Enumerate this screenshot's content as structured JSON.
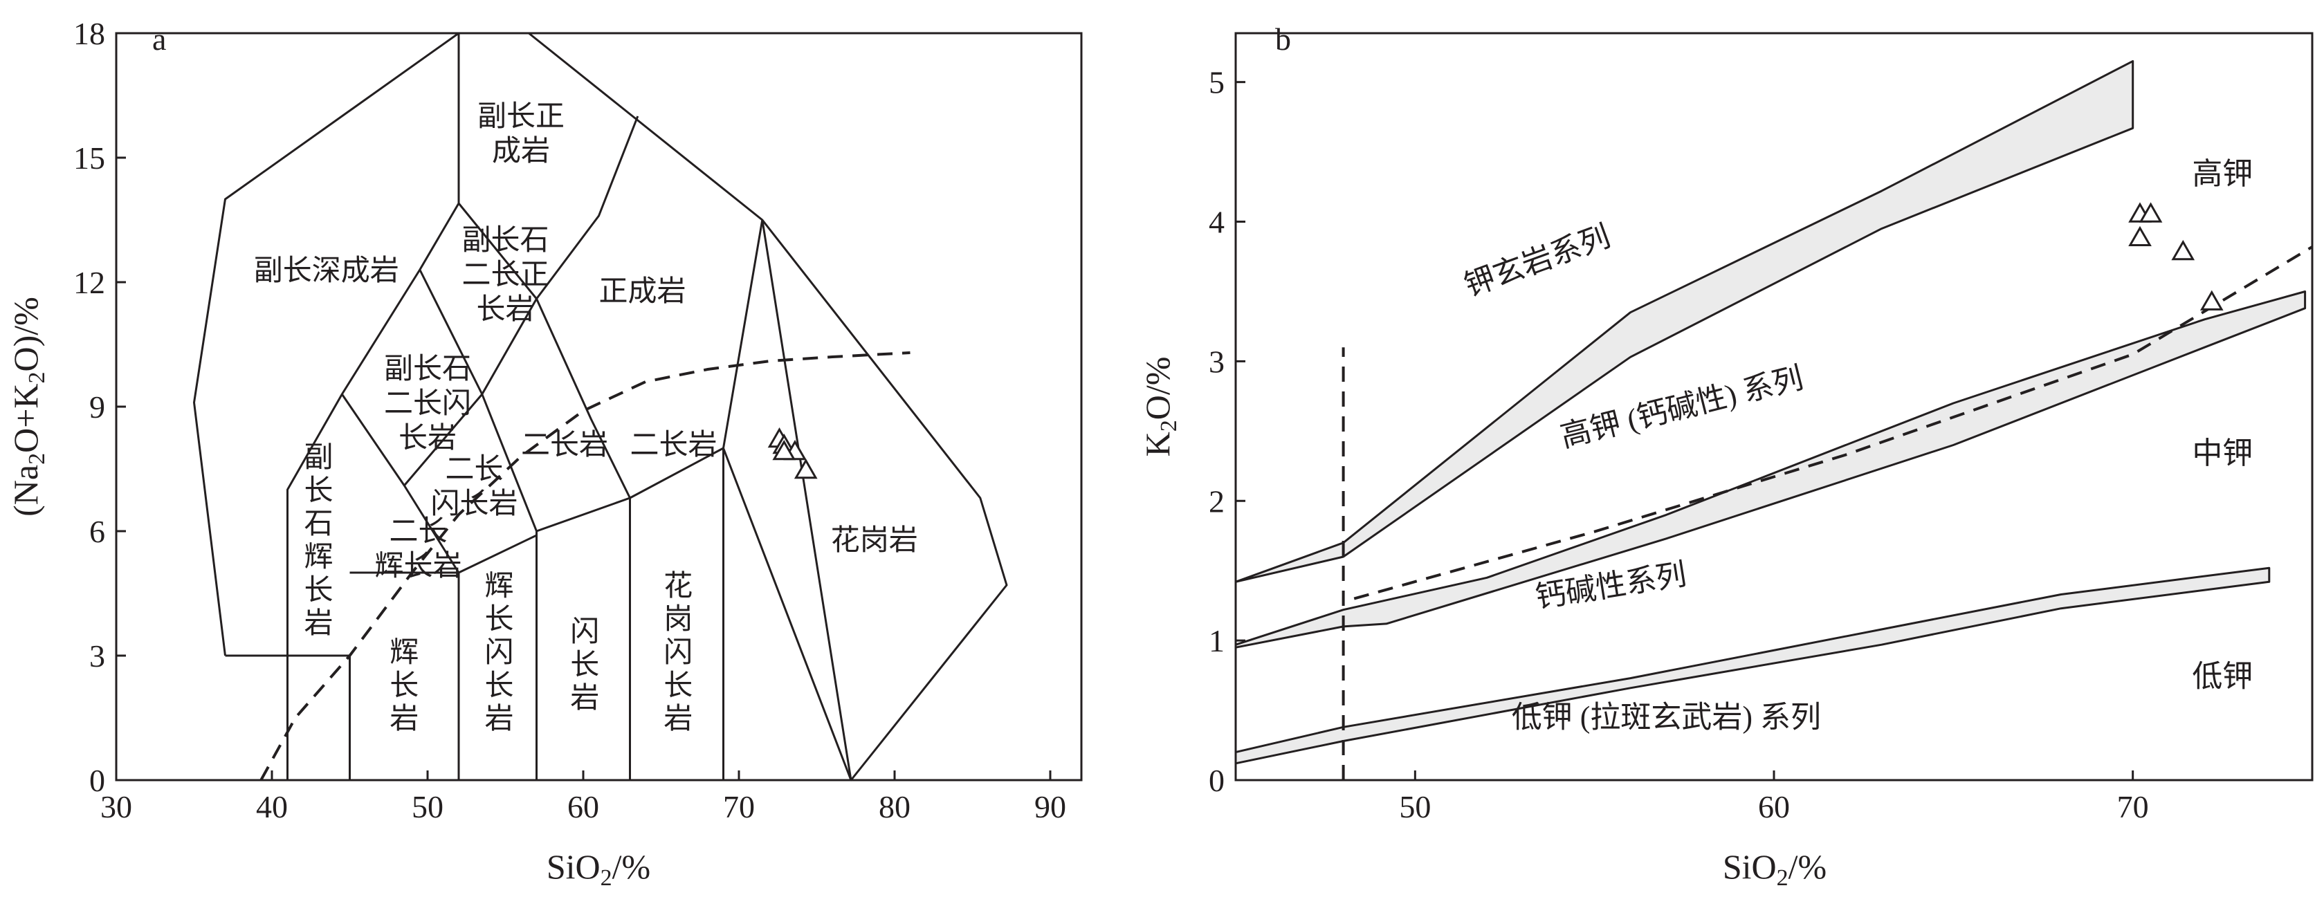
{
  "chart_data": [
    {
      "id": "a",
      "type": "scatter",
      "title": "a",
      "xlabel": "SiO2/%",
      "ylabel": "(Na2O+K2O)/%",
      "xlim": [
        30,
        92
      ],
      "ylim": [
        0,
        18
      ],
      "xticks": [
        30,
        40,
        50,
        60,
        70,
        80,
        90
      ],
      "yticks": [
        0,
        3,
        6,
        9,
        12,
        15,
        18
      ],
      "grid": false,
      "fields": [
        {
          "name": "outer-boundary",
          "points": [
            [
              37,
              3
            ],
            [
              35,
              9.1
            ],
            [
              37,
              14
            ],
            [
              52,
              18
            ],
            [
              56.5,
              18
            ],
            [
              71.5,
              13.5
            ],
            [
              85.5,
              6.8
            ],
            [
              87.2,
              4.7
            ],
            [
              77.2,
              0
            ],
            [
              71.5,
              13.5
            ]
          ]
        },
        {
          "name": "edge-41-45",
          "points": [
            [
              41,
              0
            ],
            [
              41,
              7
            ],
            [
              44.5,
              9.3
            ],
            [
              49.5,
              12.3
            ],
            [
              52,
              13.9
            ],
            [
              57,
              11.6
            ],
            [
              61,
              13.6
            ],
            [
              63.5,
              16
            ]
          ]
        },
        {
          "name": "edge-52",
          "points": [
            [
              52,
              18
            ],
            [
              52,
              13.9
            ]
          ]
        },
        {
          "name": "edge-45-3",
          "points": [
            [
              37,
              3
            ],
            [
              45,
              3
            ],
            [
              45,
              0
            ]
          ]
        },
        {
          "name": "edge-diag-1",
          "points": [
            [
              44.5,
              9.3
            ],
            [
              48.5,
              7.1
            ],
            [
              52,
              5
            ],
            [
              57,
              5.9
            ]
          ]
        },
        {
          "name": "edge-diag-2",
          "points": [
            [
              49.5,
              12.3
            ],
            [
              53.5,
              9.3
            ],
            [
              57,
              6
            ],
            [
              63,
              6.8
            ],
            [
              69,
              8
            ],
            [
              71.5,
              13.5
            ]
          ]
        },
        {
          "name": "edge-diag-3",
          "points": [
            [
              57,
              11.6
            ],
            [
              60.5,
              8.7
            ],
            [
              63,
              6.8
            ]
          ]
        },
        {
          "name": "edge-52-5",
          "points": [
            [
              45,
              5
            ],
            [
              52,
              5
            ],
            [
              52,
              0
            ]
          ]
        },
        {
          "name": "edge-57",
          "points": [
            [
              57,
              0
            ],
            [
              57,
              6
            ]
          ]
        },
        {
          "name": "edge-63",
          "points": [
            [
              63,
              0
            ],
            [
              63,
              6.8
            ]
          ]
        },
        {
          "name": "edge-69",
          "points": [
            [
              69,
              0
            ],
            [
              69,
              8
            ]
          ]
        },
        {
          "name": "edge-internal-1",
          "points": [
            [
              48.5,
              7.1
            ],
            [
              53.5,
              9.3
            ],
            [
              57,
              11.6
            ]
          ]
        },
        {
          "name": "edge-internal-2",
          "points": [
            [
              69,
              8
            ],
            [
              77.2,
              0
            ]
          ]
        }
      ],
      "field_labels": [
        {
          "lines": [
            "副长深成岩"
          ],
          "at": [
            43.5,
            12.3
          ]
        },
        {
          "lines": [
            "副长正",
            "成岩"
          ],
          "at": [
            56,
            15.6
          ]
        },
        {
          "lines": [
            "副长石",
            "二长正",
            "长岩"
          ],
          "at": [
            55,
            12.2
          ]
        },
        {
          "lines": [
            "正成岩"
          ],
          "at": [
            63.8,
            11.8
          ]
        },
        {
          "lines": [
            "副长石",
            "二长闪",
            "长岩"
          ],
          "at": [
            50,
            9.1
          ]
        },
        {
          "lines": [
            "二长岩"
          ],
          "at": [
            58.8,
            8.1
          ]
        },
        {
          "lines": [
            "二长岩"
          ],
          "at": [
            65.8,
            8.1
          ]
        },
        {
          "lines": [
            "二长",
            "闪长岩"
          ],
          "at": [
            53,
            7.1
          ]
        },
        {
          "lines": [
            "二长",
            "辉长岩"
          ],
          "at": [
            49.4,
            5.6
          ]
        },
        {
          "lines": [
            "花岗岩"
          ],
          "at": [
            78.7,
            5.8
          ]
        }
      ],
      "vertical_labels": [
        {
          "text": "副长石辉长岩",
          "at": [
            43,
            5.8
          ]
        },
        {
          "text": "辉长岩",
          "at": [
            48.5,
            2.3
          ]
        },
        {
          "text": "辉长闪长岩",
          "at": [
            54.6,
            3.1
          ]
        },
        {
          "text": "闪长岩",
          "at": [
            60.1,
            2.8
          ]
        },
        {
          "text": "花岗闪长岩",
          "at": [
            66.1,
            3.1
          ]
        }
      ],
      "divider": {
        "style": "dashed",
        "points": [
          [
            39.3,
            0
          ],
          [
            41.5,
            1.5
          ],
          [
            45,
            3
          ],
          [
            49,
            5
          ],
          [
            52,
            6.4
          ],
          [
            56,
            7.8
          ],
          [
            60,
            8.9
          ],
          [
            64,
            9.6
          ],
          [
            68,
            9.9
          ],
          [
            72,
            10.1
          ],
          [
            76,
            10.2
          ],
          [
            81,
            10.3
          ]
        ]
      },
      "series": [
        {
          "marker": "triangle",
          "points": [
            [
              72.6,
              8.2
            ],
            [
              72.9,
              8.05
            ],
            [
              73.6,
              7.9
            ],
            [
              74.3,
              7.45
            ],
            [
              72.9,
              7.9
            ]
          ]
        }
      ]
    },
    {
      "id": "b",
      "type": "scatter",
      "title": "b",
      "xlabel": "SiO2/%",
      "ylabel": "K2O/%",
      "xlim": [
        45,
        75
      ],
      "ylim": [
        0,
        5.35
      ],
      "xticks": [
        50,
        60,
        70
      ],
      "yticks": [
        0,
        1,
        2,
        3,
        4,
        5
      ],
      "grid": false,
      "bands": [
        {
          "name": "shoshonite-highK-boundary",
          "points": [
            [
              45,
              1.42
            ],
            [
              48,
              1.7
            ],
            [
              56,
              3.35
            ],
            [
              63,
              4.22
            ],
            [
              70,
              5.15
            ],
            [
              70,
              4.67
            ],
            [
              63,
              3.95
            ],
            [
              56,
              3.03
            ],
            [
              48,
              1.6
            ],
            [
              45,
              1.42
            ]
          ]
        },
        {
          "name": "highK-calcalkaline-boundary",
          "points": [
            [
              45,
              0.97
            ],
            [
              48,
              1.22
            ],
            [
              52,
              1.45
            ],
            [
              57,
              1.9
            ],
            [
              65,
              2.7
            ],
            [
              72,
              3.3
            ],
            [
              74.8,
              3.5
            ],
            [
              74.8,
              3.38
            ],
            [
              72,
              3.1
            ],
            [
              65,
              2.4
            ],
            [
              57,
              1.73
            ],
            [
              49.2,
              1.12
            ],
            [
              48,
              1.1
            ],
            [
              45,
              0.95
            ]
          ]
        },
        {
          "name": "calcalkaline-lowK-boundary",
          "points": [
            [
              45,
              0.2
            ],
            [
              48,
              0.38
            ],
            [
              56,
              0.73
            ],
            [
              63,
              1.08
            ],
            [
              68,
              1.33
            ],
            [
              73.8,
              1.52
            ],
            [
              73.8,
              1.42
            ],
            [
              68,
              1.23
            ],
            [
              63,
              0.97
            ],
            [
              56,
              0.66
            ],
            [
              48,
              0.28
            ],
            [
              45,
              0.12
            ]
          ]
        }
      ],
      "dashed_lines": [
        {
          "name": "vertical-48",
          "points": [
            [
              48,
              0
            ],
            [
              48,
              3.1
            ]
          ]
        },
        {
          "name": "divider",
          "points": [
            [
              48.3,
              1.3
            ],
            [
              55,
              1.78
            ],
            [
              62,
              2.33
            ],
            [
              70,
              3.05
            ],
            [
              75,
              3.82
            ]
          ]
        }
      ],
      "series_labels": [
        {
          "text": "钾玄岩系列",
          "at": [
            53.5,
            3.65
          ],
          "angle": -20
        },
        {
          "text": "高钾 (钙碱性) 系列",
          "at": [
            57.5,
            2.6
          ],
          "angle": -14
        },
        {
          "text": "钙碱性系列",
          "at": [
            55.5,
            1.32
          ],
          "angle": -9
        },
        {
          "text": "低钾 (拉斑玄武岩) 系列",
          "at": [
            57,
            0.38
          ],
          "angle": 0
        }
      ],
      "region_labels": [
        {
          "text": "高钾",
          "at": [
            72.5,
            4.27
          ]
        },
        {
          "text": "中钾",
          "at": [
            72.5,
            2.27
          ]
        },
        {
          "text": "低钾",
          "at": [
            72.5,
            0.67
          ]
        }
      ],
      "series": [
        {
          "marker": "triangle",
          "points": [
            [
              70.2,
              4.05
            ],
            [
              70.5,
              4.05
            ],
            [
              70.2,
              3.88
            ],
            [
              71.4,
              3.78
            ],
            [
              72.2,
              3.42
            ]
          ]
        }
      ]
    }
  ]
}
